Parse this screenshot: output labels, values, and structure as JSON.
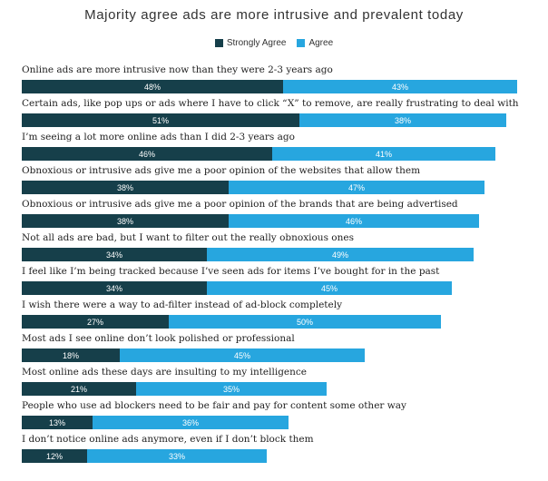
{
  "colors": {
    "strongly_agree": "#163f4a",
    "agree": "#27a6df"
  },
  "chart_data": {
    "type": "bar",
    "orientation": "horizontal",
    "stacked": true,
    "title": "Majority agree ads are more intrusive and prevalent today",
    "legend": [
      "Strongly Agree",
      "Agree"
    ],
    "legend_position": "top",
    "categories": [
      "Online ads are more intrusive now than they were 2-3 years ago",
      "Certain ads, like pop ups or ads where I have to click “X” to remove, are really frustrating to deal with",
      "I’m seeing a lot more online ads than I did 2-3 years ago",
      "Obnoxious or intrusive ads give me a poor opinion of the websites that allow them",
      "Obnoxious or intrusive ads give me a poor opinion of the brands that are being advertised",
      "Not all ads are bad, but I want to filter out the really obnoxious ones",
      "I feel like I’m being tracked because I’ve seen ads for items I’ve bought for in the past",
      "I wish there were a way to ad-filter instead of ad-block completely",
      "Most ads I see online don’t look polished or professional",
      "Most online ads these days are insulting to my intelligence",
      "People who use ad blockers need to be fair and pay for content some other way",
      "I don’t notice online ads anymore, even if I don’t block them"
    ],
    "series": [
      {
        "name": "Strongly Agree",
        "values": [
          48,
          51,
          46,
          38,
          38,
          34,
          34,
          27,
          18,
          21,
          13,
          12
        ]
      },
      {
        "name": "Agree",
        "values": [
          43,
          38,
          41,
          47,
          46,
          49,
          45,
          50,
          45,
          35,
          36,
          33
        ]
      }
    ],
    "value_suffix": "%"
  }
}
